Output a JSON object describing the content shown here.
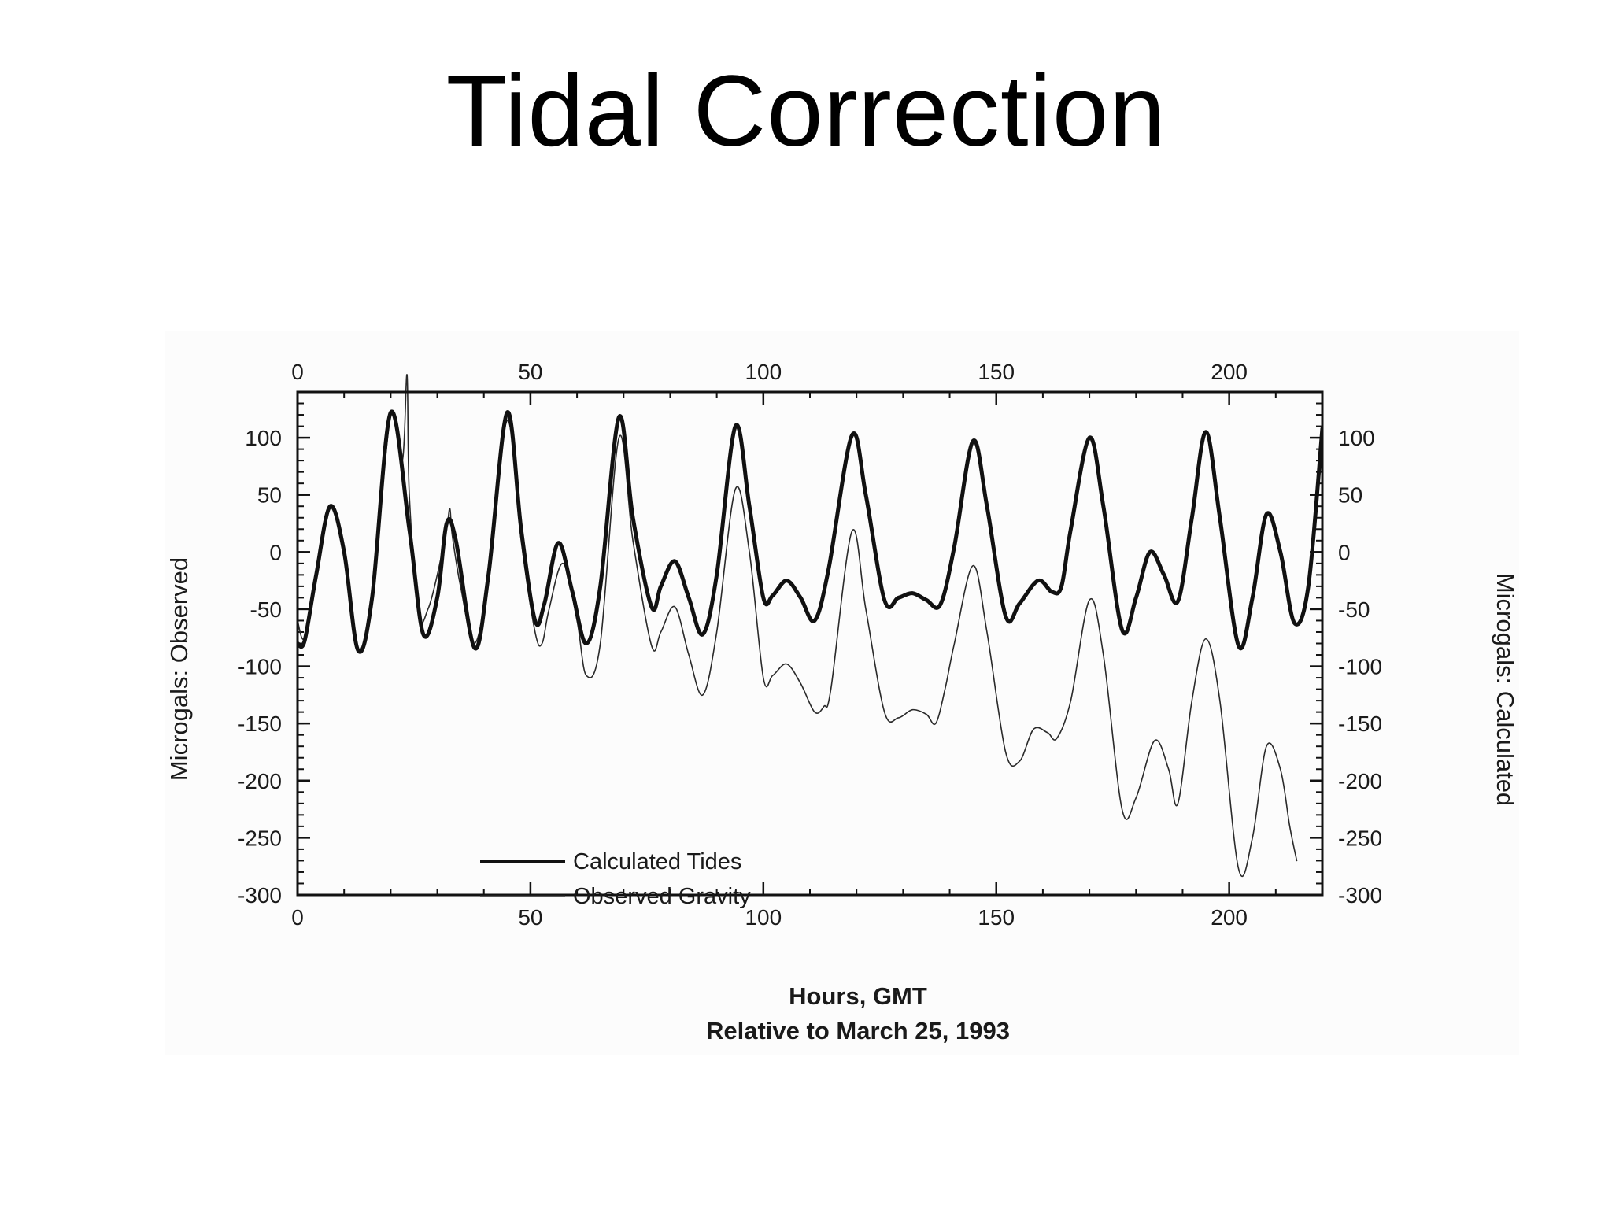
{
  "slide": {
    "title": "Tidal Correction"
  },
  "chart_data": {
    "type": "line",
    "xlabel": "Hours, GMT",
    "xlabel2": "Relative to March 25, 1993",
    "ylabel_left": "Microgals: Observed",
    "ylabel_right": "Microgals: Calculated",
    "xlim": [
      0,
      220
    ],
    "ylim": [
      -300,
      140
    ],
    "x_ticks": [
      0,
      50,
      100,
      150,
      200
    ],
    "y_ticks": [
      100,
      50,
      0,
      -50,
      -100,
      -150,
      -200,
      -250,
      -300
    ],
    "grid": false,
    "legend_position": "bottom-left",
    "legend": [
      "Calculated Tides",
      "Observed Gravity"
    ],
    "series": [
      {
        "name": "Calculated Tides",
        "style": "thick",
        "points": [
          [
            0,
            -80
          ],
          [
            1.5,
            -78
          ],
          [
            4,
            -20
          ],
          [
            7,
            40
          ],
          [
            10,
            0
          ],
          [
            13,
            -86
          ],
          [
            16,
            -40
          ],
          [
            20,
            122
          ],
          [
            24,
            20
          ],
          [
            27,
            -72
          ],
          [
            30,
            -40
          ],
          [
            32,
            25
          ],
          [
            34,
            10
          ],
          [
            38,
            -84
          ],
          [
            41,
            -20
          ],
          [
            45,
            122
          ],
          [
            48,
            20
          ],
          [
            51,
            -60
          ],
          [
            53,
            -45
          ],
          [
            56,
            8
          ],
          [
            59,
            -35
          ],
          [
            62,
            -80
          ],
          [
            65,
            -30
          ],
          [
            69,
            118
          ],
          [
            72,
            30
          ],
          [
            76,
            -48
          ],
          [
            78,
            -30
          ],
          [
            81,
            -8
          ],
          [
            84,
            -40
          ],
          [
            87,
            -72
          ],
          [
            90,
            -20
          ],
          [
            94,
            110
          ],
          [
            97,
            40
          ],
          [
            100,
            -40
          ],
          [
            102,
            -38
          ],
          [
            105,
            -25
          ],
          [
            108,
            -40
          ],
          [
            111,
            -60
          ],
          [
            114,
            -15
          ],
          [
            119,
            102
          ],
          [
            122,
            50
          ],
          [
            126,
            -42
          ],
          [
            129,
            -40
          ],
          [
            132,
            -36
          ],
          [
            135,
            -42
          ],
          [
            138,
            -46
          ],
          [
            141,
            5
          ],
          [
            145,
            97
          ],
          [
            148,
            40
          ],
          [
            152,
            -56
          ],
          [
            155,
            -45
          ],
          [
            159,
            -25
          ],
          [
            162,
            -35
          ],
          [
            164,
            -30
          ],
          [
            166,
            20
          ],
          [
            170,
            100
          ],
          [
            173,
            40
          ],
          [
            177,
            -68
          ],
          [
            180,
            -40
          ],
          [
            183,
            0
          ],
          [
            186,
            -20
          ],
          [
            189,
            -43
          ],
          [
            192,
            30
          ],
          [
            195,
            105
          ],
          [
            198,
            30
          ],
          [
            202,
            -82
          ],
          [
            205,
            -40
          ],
          [
            208,
            33
          ],
          [
            211,
            0
          ],
          [
            214,
            -62
          ],
          [
            217,
            -30
          ],
          [
            220,
            108
          ]
        ]
      },
      {
        "name": "Observed Gravity",
        "style": "thin",
        "points": [
          [
            0,
            -60
          ],
          [
            1.5,
            -75
          ],
          [
            4,
            -20
          ],
          [
            7,
            38
          ],
          [
            10,
            0
          ],
          [
            13,
            -86
          ],
          [
            16,
            -40
          ],
          [
            20,
            120
          ],
          [
            22.5,
            80
          ],
          [
            23.5,
            155
          ],
          [
            24,
            50
          ],
          [
            26,
            -55
          ],
          [
            28,
            -50
          ],
          [
            30,
            -20
          ],
          [
            32,
            20
          ],
          [
            32.7,
            38
          ],
          [
            33.2,
            15
          ],
          [
            35,
            -30
          ],
          [
            38,
            -80
          ],
          [
            41,
            -20
          ],
          [
            45,
            115
          ],
          [
            48,
            10
          ],
          [
            51,
            -70
          ],
          [
            52.5,
            -80
          ],
          [
            54,
            -50
          ],
          [
            57,
            -10
          ],
          [
            60,
            -60
          ],
          [
            62,
            -108
          ],
          [
            65,
            -80
          ],
          [
            69,
            100
          ],
          [
            72,
            10
          ],
          [
            76,
            -82
          ],
          [
            78,
            -70
          ],
          [
            81,
            -48
          ],
          [
            84,
            -90
          ],
          [
            87,
            -125
          ],
          [
            90,
            -70
          ],
          [
            94,
            55
          ],
          [
            97,
            0
          ],
          [
            100,
            -110
          ],
          [
            102,
            -108
          ],
          [
            105,
            -98
          ],
          [
            108,
            -115
          ],
          [
            111,
            -140
          ],
          [
            113,
            -135
          ],
          [
            114.5,
            -120
          ],
          [
            119,
            18
          ],
          [
            122,
            -50
          ],
          [
            126,
            -140
          ],
          [
            129,
            -145
          ],
          [
            132,
            -138
          ],
          [
            135,
            -142
          ],
          [
            137,
            -150
          ],
          [
            139,
            -120
          ],
          [
            141,
            -80
          ],
          [
            145,
            -12
          ],
          [
            148,
            -70
          ],
          [
            152,
            -175
          ],
          [
            155,
            -183
          ],
          [
            158,
            -155
          ],
          [
            161,
            -158
          ],
          [
            163,
            -163
          ],
          [
            166,
            -130
          ],
          [
            170,
            -42
          ],
          [
            173,
            -90
          ],
          [
            177,
            -225
          ],
          [
            180,
            -215
          ],
          [
            184,
            -165
          ],
          [
            187,
            -190
          ],
          [
            189,
            -220
          ],
          [
            192,
            -130
          ],
          [
            195,
            -76
          ],
          [
            198,
            -130
          ],
          [
            202,
            -277
          ],
          [
            205,
            -250
          ],
          [
            208,
            -170
          ],
          [
            211,
            -190
          ],
          [
            213,
            -240
          ],
          [
            214.5,
            -270
          ]
        ]
      }
    ]
  }
}
